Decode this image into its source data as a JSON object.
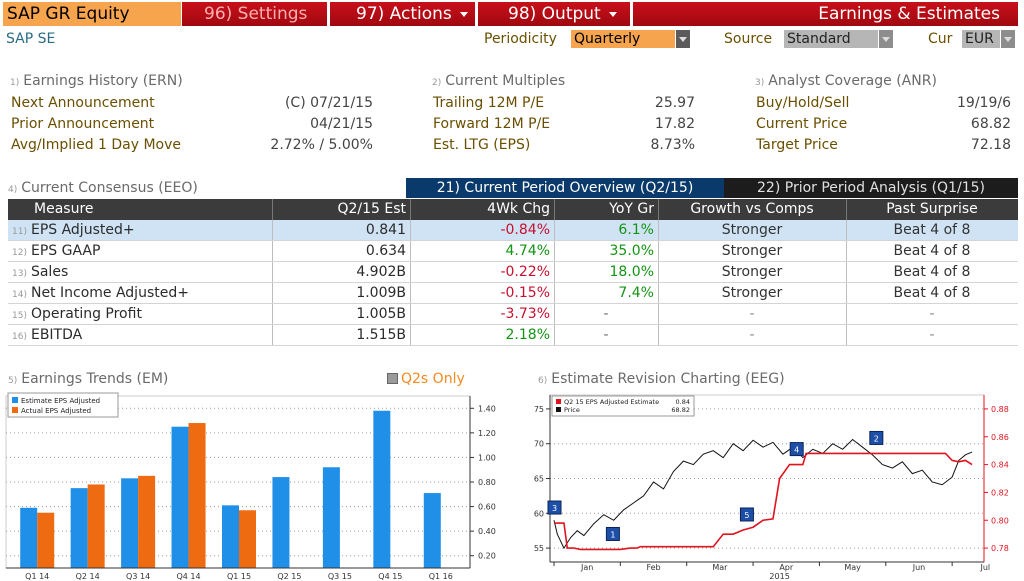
{
  "topbar": {
    "ticker": "SAP GR Equity",
    "settings": "96) Settings",
    "actions": "97) Actions",
    "output": "98) Output",
    "title": "Earnings & Estimates"
  },
  "subbar": {
    "company": "SAP SE",
    "periodicity_label": "Periodicity",
    "periodicity_value": "Quarterly",
    "source_label": "Source",
    "source_value": "Standard",
    "cur_label": "Cur",
    "cur_value": "EUR"
  },
  "earnings_history": {
    "num": "1)",
    "title": "Earnings History (ERN)",
    "rows": [
      {
        "label": "Next Announcement",
        "value": "(C)  07/21/15"
      },
      {
        "label": "Prior Announcement",
        "value": "04/21/15"
      },
      {
        "label": "Avg/Implied 1 Day Move",
        "value": "2.72% / 5.00%"
      }
    ]
  },
  "current_multiples": {
    "num": "2)",
    "title": "Current Multiples",
    "rows": [
      {
        "label": "Trailing 12M P/E",
        "value": "25.97"
      },
      {
        "label": "Forward 12M P/E",
        "value": "17.82"
      },
      {
        "label": "Est. LTG (EPS)",
        "value": "8.73%"
      }
    ]
  },
  "analyst_coverage": {
    "num": "3)",
    "title": "Analyst Coverage (ANR)",
    "rows": [
      {
        "label": "Buy/Hold/Sell",
        "value": "19/19/6"
      },
      {
        "label": "Current Price",
        "value": "68.82"
      },
      {
        "label": "Target Price",
        "value": "72.18"
      }
    ]
  },
  "consensus": {
    "num": "4)",
    "title": "Current Consensus (EEO)",
    "tab_current": "21) Current Period Overview (Q2/15)",
    "tab_prior": "22) Prior Period Analysis (Q1/15)",
    "headers": [
      "Measure",
      "Q2/15 Est",
      "4Wk Chg",
      "YoY Gr",
      "Growth vs Comps",
      "Past Surprise"
    ],
    "rows": [
      {
        "num": "11)",
        "measure": "EPS Adjusted+",
        "est": "0.841",
        "chg": "-0.84%",
        "yoy": "6.1%",
        "comps": "Stronger",
        "surprise": "Beat 4 of 8"
      },
      {
        "num": "12)",
        "measure": "EPS GAAP",
        "est": "0.634",
        "chg": "4.74%",
        "yoy": "35.0%",
        "comps": "Stronger",
        "surprise": "Beat 4 of 8"
      },
      {
        "num": "13)",
        "measure": "Sales",
        "est": "4.902B",
        "chg": "-0.22%",
        "yoy": "18.0%",
        "comps": "Stronger",
        "surprise": "Beat 4 of 8"
      },
      {
        "num": "14)",
        "measure": "Net Income Adjusted+",
        "est": "1.009B",
        "chg": "-0.15%",
        "yoy": "7.4%",
        "comps": "Stronger",
        "surprise": "Beat 4 of 8"
      },
      {
        "num": "15)",
        "measure": "Operating Profit",
        "est": "1.005B",
        "chg": "-3.73%",
        "yoy": "-",
        "comps": "-",
        "surprise": "-"
      },
      {
        "num": "16)",
        "measure": "EBITDA",
        "est": "1.515B",
        "chg": "2.18%",
        "yoy": "-",
        "comps": "-",
        "surprise": "-"
      }
    ]
  },
  "trends": {
    "num": "5)",
    "title": "Earnings Trends (EM)",
    "q2s_label": "Q2s Only"
  },
  "revision": {
    "num": "6)",
    "title": "Estimate Revision Charting (EEG)"
  },
  "chart_data": [
    {
      "type": "bar",
      "categories": [
        "Q1 14",
        "Q2 14",
        "Q3 14",
        "Q4 14",
        "Q1 15",
        "Q2 15",
        "Q3 15",
        "Q4 15",
        "Q1 16"
      ],
      "series": [
        {
          "name": "Estimate EPS Adjusted",
          "color": "#1f8fe8",
          "values": [
            0.59,
            0.75,
            0.83,
            1.25,
            0.61,
            0.84,
            0.92,
            1.38,
            0.71
          ]
        },
        {
          "name": "Actual EPS Adjusted",
          "color": "#ee6b12",
          "values": [
            0.55,
            0.78,
            0.85,
            1.28,
            0.57,
            null,
            null,
            null,
            null
          ]
        }
      ],
      "yticks": [
        0.2,
        0.4,
        0.6,
        0.8,
        1.0,
        1.2,
        1.4
      ],
      "ytick_labels": [
        "0.20",
        "0.40",
        "0.60",
        "0.80",
        "1.00",
        "1.20",
        "1.40"
      ],
      "ylim": [
        0.1,
        1.5
      ],
      "legend": "top-left",
      "grid": true
    },
    {
      "type": "line",
      "x_labels": [
        "Jan",
        "Feb",
        "Mar",
        "Apr",
        "May",
        "Jun",
        "Jul"
      ],
      "x_year": "2015",
      "left_axis": {
        "ticks": [
          55,
          60,
          65,
          70,
          75
        ],
        "ylim": [
          53,
          77
        ]
      },
      "right_axis": {
        "ticks": [
          0.78,
          0.8,
          0.82,
          0.84,
          0.86,
          0.88
        ],
        "tick_labels": [
          "0.78",
          "0.80",
          "0.82",
          "0.84",
          "0.86",
          "0.88"
        ],
        "ylim": [
          0.77,
          0.89
        ]
      },
      "legend": "top-left",
      "series": [
        {
          "name": "Q2 15 EPS Adjusted Estimate",
          "value_label": "0.84",
          "color": "#e0141e",
          "axis": "right",
          "points": [
            [
              0,
              0.798
            ],
            [
              0.15,
              0.798
            ],
            [
              0.2,
              0.78
            ],
            [
              0.3,
              0.78
            ],
            [
              0.4,
              0.779
            ],
            [
              1.0,
              0.779
            ],
            [
              1.15,
              0.78
            ],
            [
              1.25,
              0.78
            ],
            [
              1.3,
              0.781
            ],
            [
              2.0,
              0.781
            ],
            [
              2.4,
              0.781
            ],
            [
              2.55,
              0.79
            ],
            [
              2.7,
              0.79
            ],
            [
              2.85,
              0.793
            ],
            [
              3.0,
              0.795
            ],
            [
              3.15,
              0.8
            ],
            [
              3.3,
              0.801
            ],
            [
              3.4,
              0.83
            ],
            [
              3.55,
              0.84
            ],
            [
              3.75,
              0.84
            ],
            [
              3.8,
              0.848
            ],
            [
              4.6,
              0.848
            ],
            [
              5.0,
              0.848
            ],
            [
              5.5,
              0.848
            ],
            [
              5.9,
              0.848
            ],
            [
              6.0,
              0.843
            ],
            [
              6.1,
              0.842
            ],
            [
              6.2,
              0.843
            ],
            [
              6.3,
              0.84
            ]
          ]
        },
        {
          "name": "Price",
          "value_label": "68.82",
          "color": "#111111",
          "axis": "left",
          "points": [
            [
              0,
              59
            ],
            [
              0.05,
              57
            ],
            [
              0.15,
              55
            ],
            [
              0.25,
              56.5
            ],
            [
              0.35,
              57.5
            ],
            [
              0.45,
              56.8
            ],
            [
              0.6,
              58.5
            ],
            [
              0.75,
              59.8
            ],
            [
              0.9,
              59
            ],
            [
              1.05,
              60.5
            ],
            [
              1.2,
              61.5
            ],
            [
              1.35,
              62.5
            ],
            [
              1.5,
              64.5
            ],
            [
              1.65,
              63.5
            ],
            [
              1.8,
              66
            ],
            [
              1.95,
              67.5
            ],
            [
              2.1,
              67
            ],
            [
              2.25,
              68.5
            ],
            [
              2.4,
              69
            ],
            [
              2.55,
              68
            ],
            [
              2.7,
              70
            ],
            [
              2.85,
              69
            ],
            [
              3.0,
              70.5
            ],
            [
              3.15,
              69.5
            ],
            [
              3.3,
              70.2
            ],
            [
              3.45,
              68.5
            ],
            [
              3.6,
              69.5
            ],
            [
              3.75,
              68
            ],
            [
              3.9,
              69.2
            ],
            [
              4.05,
              68.6
            ],
            [
              4.2,
              70
            ],
            [
              4.35,
              69.2
            ],
            [
              4.5,
              70.6
            ],
            [
              4.65,
              69.5
            ],
            [
              4.8,
              68.4
            ],
            [
              4.95,
              67
            ],
            [
              5.1,
              66.5
            ],
            [
              5.25,
              67.4
            ],
            [
              5.4,
              65.7
            ],
            [
              5.55,
              66.2
            ],
            [
              5.7,
              64.5
            ],
            [
              5.85,
              64.1
            ],
            [
              6.0,
              65.2
            ],
            [
              6.1,
              67.6
            ],
            [
              6.2,
              68.4
            ],
            [
              6.3,
              68.8
            ]
          ]
        }
      ],
      "event_markers": [
        {
          "label": "3",
          "x": 0.0
        },
        {
          "label": "1",
          "x": 0.88
        },
        {
          "label": "5",
          "x": 2.9
        },
        {
          "label": "4",
          "x": 3.65
        },
        {
          "label": "2",
          "x": 4.85
        }
      ],
      "grid": true
    }
  ]
}
